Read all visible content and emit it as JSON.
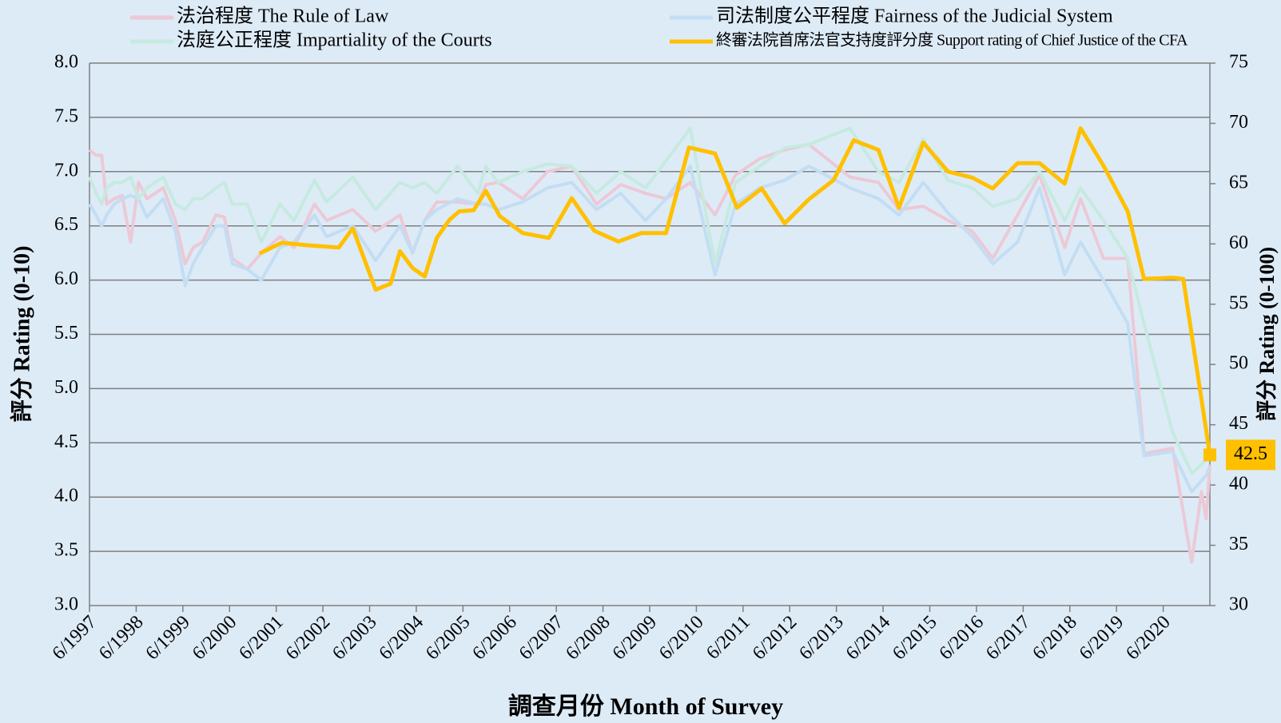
{
  "chart_data": {
    "type": "line",
    "x_title": "調查月份 Month of Survey",
    "y_title": "評分 Rating (0-10)",
    "y2_title": "評分 Rating (0-100)",
    "x": [
      1997.5,
      1997.64,
      1997.76,
      1997.87,
      1998.03,
      1998.2,
      1998.38,
      1998.55,
      1998.73,
      1999.08,
      1999.34,
      1999.55,
      1999.72,
      1999.92,
      2000.21,
      2000.39,
      2000.56,
      2000.88,
      2001.18,
      2001.58,
      2001.88,
      2002.32,
      2002.58,
      2003.14,
      2003.63,
      2004.15,
      2004.42,
      2004.68,
      2004.94,
      2005.38,
      2005.82,
      2005.99,
      2006.26,
      2006.78,
      2007.31,
      2007.83,
      2008.36,
      2008.88,
      2009.41,
      2009.85,
      2010.37,
      2010.9,
      2011.34,
      2011.86,
      2012.39,
      2012.91,
      2013.79,
      2014.4,
      2014.84,
      2015.36,
      2015.89,
      2016.41,
      2016.85,
      2017.38,
      2017.85,
      2018.39,
      2018.73,
      2019.22,
      2019.74,
      2020.09,
      2020.7,
      2021.11,
      2021.32,
      2021.42,
      2021.5
    ],
    "series": [
      {
        "name": "法治程度 The Rule of Law",
        "color": "#ecc9d6",
        "values": [
          7.2,
          7.15,
          7.15,
          6.7,
          6.75,
          6.78,
          6.35,
          6.9,
          6.75,
          6.85,
          6.55,
          6.15,
          6.3,
          6.35,
          6.6,
          6.58,
          6.2,
          6.1,
          6.25,
          6.4,
          6.3,
          6.7,
          6.55,
          6.65,
          6.45,
          6.6,
          6.25,
          6.55,
          6.72,
          6.72,
          6.7,
          6.88,
          6.9,
          6.75,
          7.0,
          7.05,
          6.7,
          6.88,
          6.8,
          6.75,
          6.9,
          6.6,
          6.97,
          7.12,
          7.2,
          7.25,
          6.95,
          6.9,
          6.65,
          6.68,
          6.55,
          6.45,
          6.2,
          6.6,
          6.97,
          6.3,
          6.75,
          6.2,
          6.2,
          4.4,
          4.45,
          3.4,
          4.05,
          3.8,
          4.3
        ]
      },
      {
        "name": "司法制度公平程度 Fairness of the Judicial System",
        "color": "#c3ddf3",
        "values": [
          6.7,
          6.6,
          6.5,
          6.6,
          6.7,
          6.75,
          6.78,
          6.75,
          6.58,
          6.75,
          6.45,
          5.95,
          6.15,
          6.3,
          6.5,
          6.5,
          6.15,
          6.1,
          6.0,
          6.3,
          6.35,
          6.6,
          6.4,
          6.5,
          6.18,
          6.5,
          6.25,
          6.55,
          6.65,
          6.75,
          6.7,
          6.7,
          6.65,
          6.72,
          6.85,
          6.9,
          6.65,
          6.8,
          6.55,
          6.75,
          7.05,
          6.05,
          6.7,
          6.85,
          6.92,
          7.05,
          6.85,
          6.75,
          6.6,
          6.9,
          6.62,
          6.4,
          6.15,
          6.35,
          6.85,
          6.05,
          6.35,
          6.0,
          5.6,
          4.38,
          4.42,
          4.05,
          4.15,
          4.2,
          4.28
        ]
      },
      {
        "name": "法庭公正程度 Impartiality of the Courts",
        "color": "#c6eadf",
        "values": [
          6.95,
          6.8,
          6.7,
          6.85,
          6.9,
          6.9,
          6.95,
          6.75,
          6.85,
          6.95,
          6.7,
          6.65,
          6.75,
          6.75,
          6.85,
          6.9,
          6.7,
          6.7,
          6.35,
          6.7,
          6.55,
          6.92,
          6.72,
          6.95,
          6.65,
          6.9,
          6.85,
          6.9,
          6.8,
          7.05,
          6.8,
          7.05,
          6.9,
          7.0,
          7.07,
          7.05,
          6.8,
          7.0,
          6.85,
          7.1,
          7.4,
          6.15,
          6.9,
          7.05,
          7.22,
          7.25,
          7.4,
          7.0,
          6.9,
          7.3,
          6.92,
          6.85,
          6.68,
          6.75,
          7.0,
          6.55,
          6.85,
          6.55,
          6.2,
          5.6,
          4.6,
          4.22,
          4.3,
          4.35,
          4.38
        ]
      },
      {
        "name": "終審法院首席法官支持度評分度 Support rating of Chief Justice of the CFA",
        "color": "#ffc000",
        "axis": "y2",
        "x": [
          2001.14,
          2001.62,
          2002.14,
          2002.84,
          2003.14,
          2003.63,
          2003.95,
          2004.15,
          2004.42,
          2004.68,
          2004.94,
          2005.21,
          2005.42,
          2005.73,
          2005.99,
          2006.29,
          2006.78,
          2007.34,
          2007.83,
          2008.31,
          2008.83,
          2009.32,
          2009.85,
          2010.34,
          2010.9,
          2011.37,
          2011.9,
          2012.39,
          2012.91,
          2013.44,
          2013.87,
          2014.4,
          2014.84,
          2015.36,
          2015.89,
          2016.41,
          2016.85,
          2017.38,
          2017.85,
          2018.39,
          2018.73,
          2019.22,
          2019.74,
          2020.09,
          2020.7,
          2020.93,
          2021.5
        ],
        "values": [
          59.2,
          60.1,
          59.9,
          59.7,
          61.3,
          56.2,
          56.7,
          59.4,
          58.0,
          57.3,
          60.5,
          62.0,
          62.7,
          62.8,
          64.4,
          62.3,
          60.9,
          60.5,
          63.8,
          61.1,
          60.2,
          60.9,
          60.9,
          68.0,
          67.5,
          63.0,
          64.6,
          61.7,
          63.7,
          65.3,
          68.6,
          67.8,
          63.0,
          68.4,
          66.0,
          65.5,
          64.6,
          66.7,
          66.7,
          65.0,
          69.6,
          66.5,
          62.7,
          57.1,
          57.2,
          57.1,
          42.5
        ]
      }
    ],
    "xlim": [
      1997.5,
      2021.5
    ],
    "xticks": [
      {
        "value": 1997.5,
        "label": "6/1997"
      },
      {
        "value": 1998.5,
        "label": "6/1998"
      },
      {
        "value": 1999.5,
        "label": "6/1999"
      },
      {
        "value": 2000.5,
        "label": "6/2000"
      },
      {
        "value": 2001.5,
        "label": "6/2001"
      },
      {
        "value": 2002.5,
        "label": "6/2002"
      },
      {
        "value": 2003.5,
        "label": "6/2003"
      },
      {
        "value": 2004.5,
        "label": "6/2004"
      },
      {
        "value": 2005.5,
        "label": "6/2005"
      },
      {
        "value": 2006.5,
        "label": "6/2006"
      },
      {
        "value": 2007.5,
        "label": "6/2007"
      },
      {
        "value": 2008.5,
        "label": "6/2008"
      },
      {
        "value": 2009.5,
        "label": "6/2009"
      },
      {
        "value": 2010.5,
        "label": "6/2010"
      },
      {
        "value": 2011.5,
        "label": "6/2011"
      },
      {
        "value": 2012.5,
        "label": "6/2012"
      },
      {
        "value": 2013.5,
        "label": "6/2013"
      },
      {
        "value": 2014.5,
        "label": "6/2014"
      },
      {
        "value": 2015.5,
        "label": "6/2015"
      },
      {
        "value": 2016.5,
        "label": "6/2016"
      },
      {
        "value": 2017.5,
        "label": "6/2017"
      },
      {
        "value": 2018.5,
        "label": "6/2018"
      },
      {
        "value": 2019.5,
        "label": "6/2019"
      },
      {
        "value": 2020.5,
        "label": "6/2020"
      }
    ],
    "ylim": [
      3,
      8
    ],
    "yticks": [
      {
        "value": 3,
        "label": "3.0"
      },
      {
        "value": 3.5,
        "label": "3.5"
      },
      {
        "value": 4,
        "label": "4.0"
      },
      {
        "value": 4.5,
        "label": "4.5"
      },
      {
        "value": 5,
        "label": "5.0"
      },
      {
        "value": 5.5,
        "label": "5.5"
      },
      {
        "value": 6,
        "label": "6.0"
      },
      {
        "value": 6.5,
        "label": "6.5"
      },
      {
        "value": 7,
        "label": "7.0"
      },
      {
        "value": 7.5,
        "label": "7.5"
      },
      {
        "value": 8,
        "label": "8.0"
      }
    ],
    "y2lim": [
      30,
      75
    ],
    "y2ticks": [
      30,
      35,
      40,
      45,
      50,
      55,
      60,
      65,
      70,
      75
    ],
    "grid": true
  }
}
